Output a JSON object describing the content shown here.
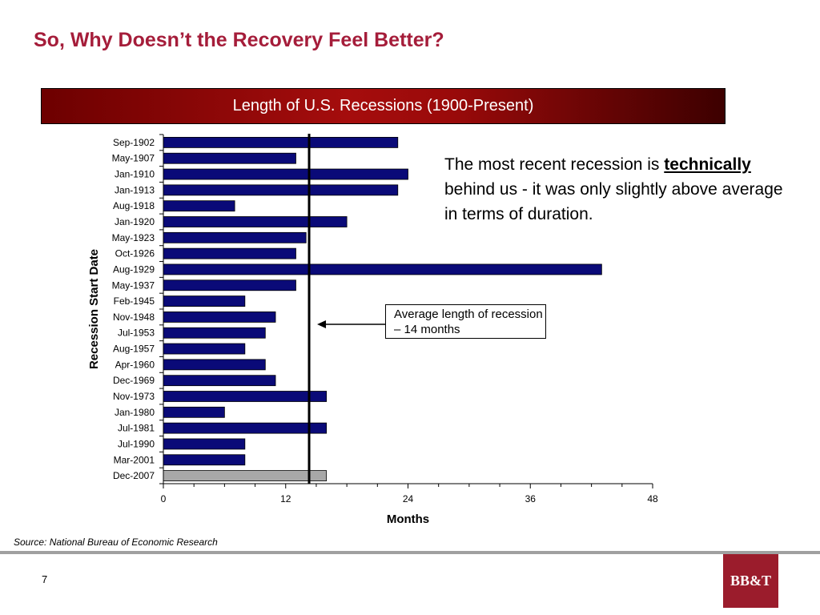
{
  "slide": {
    "title": "So, Why Doesn’t the Recovery Feel Better?",
    "banner": "Length of U.S. Recessions (1900-Present)",
    "note_before": "The most recent recession is ",
    "note_emph": "technically",
    "note_after": " behind us - it was only slightly above average in terms of duration.",
    "avg_note": "Average length of recession – 14 months",
    "source": "Source: National Bureau of Economic Research",
    "page_number": "7",
    "logo_text": "BB&T"
  },
  "chart_data": {
    "type": "bar",
    "orientation": "horizontal",
    "ylabel": "Recession Start Date",
    "xlabel": "Months",
    "xlim": [
      0,
      48
    ],
    "xticks": [
      0,
      12,
      24,
      36,
      48
    ],
    "average_line": 14.3,
    "categories": [
      "Sep-1902",
      "May-1907",
      "Jan-1910",
      "Jan-1913",
      "Aug-1918",
      "Jan-1920",
      "May-1923",
      "Oct-1926",
      "Aug-1929",
      "May-1937",
      "Feb-1945",
      "Nov-1948",
      "Jul-1953",
      "Aug-1957",
      "Apr-1960",
      "Dec-1969",
      "Nov-1973",
      "Jan-1980",
      "Jul-1981",
      "Jul-1990",
      "Mar-2001",
      "Dec-2007"
    ],
    "values": [
      23,
      13,
      24,
      23,
      7,
      18,
      14,
      13,
      43,
      13,
      8,
      11,
      10,
      8,
      10,
      11,
      16,
      6,
      16,
      8,
      8,
      16
    ],
    "highlight_category": "Dec-2007",
    "colors": {
      "bar": "#0a0a78",
      "highlight": "#a8a8a8",
      "avg_line": "#000000"
    }
  }
}
